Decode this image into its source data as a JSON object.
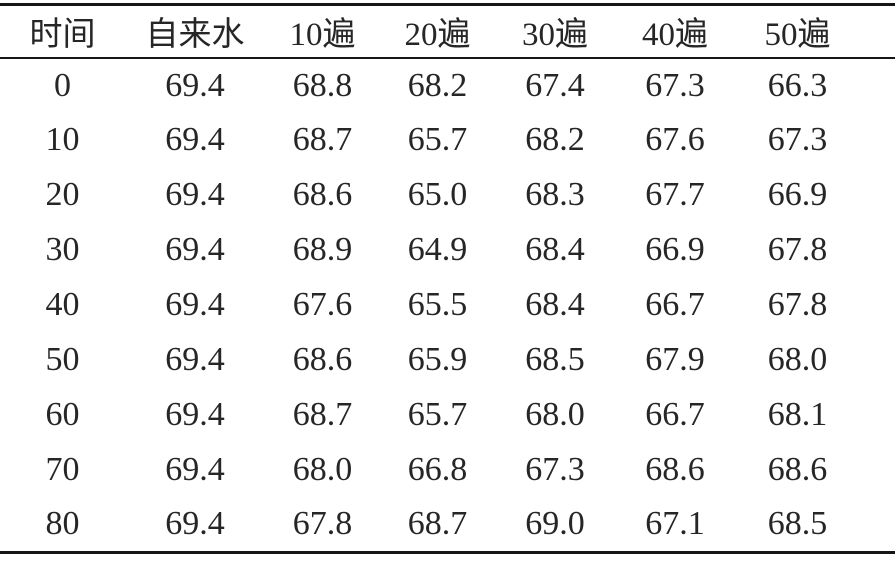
{
  "colors": {
    "background": "#ffffff",
    "text": "#262626",
    "rule": "#161616"
  },
  "chart_data": {
    "type": "table",
    "style": "three-line-table",
    "columns": [
      "时间",
      "自来水",
      "10遍",
      "20遍",
      "30遍",
      "40遍",
      "50遍"
    ],
    "rows": [
      [
        "0",
        "69.4",
        "68.8",
        "68.2",
        "67.4",
        "67.3",
        "66.3"
      ],
      [
        "10",
        "69.4",
        "68.7",
        "65.7",
        "68.2",
        "67.6",
        "67.3"
      ],
      [
        "20",
        "69.4",
        "68.6",
        "65.0",
        "68.3",
        "67.7",
        "66.9"
      ],
      [
        "30",
        "69.4",
        "68.9",
        "64.9",
        "68.4",
        "66.9",
        "67.8"
      ],
      [
        "40",
        "69.4",
        "67.6",
        "65.5",
        "68.4",
        "66.7",
        "67.8"
      ],
      [
        "50",
        "69.4",
        "68.6",
        "65.9",
        "68.5",
        "67.9",
        "68.0"
      ],
      [
        "60",
        "69.4",
        "68.7",
        "65.7",
        "68.0",
        "66.7",
        "68.1"
      ],
      [
        "70",
        "69.4",
        "68.0",
        "66.8",
        "67.3",
        "68.6",
        "68.6"
      ],
      [
        "80",
        "69.4",
        "67.8",
        "68.7",
        "69.0",
        "67.1",
        "68.5"
      ]
    ]
  }
}
